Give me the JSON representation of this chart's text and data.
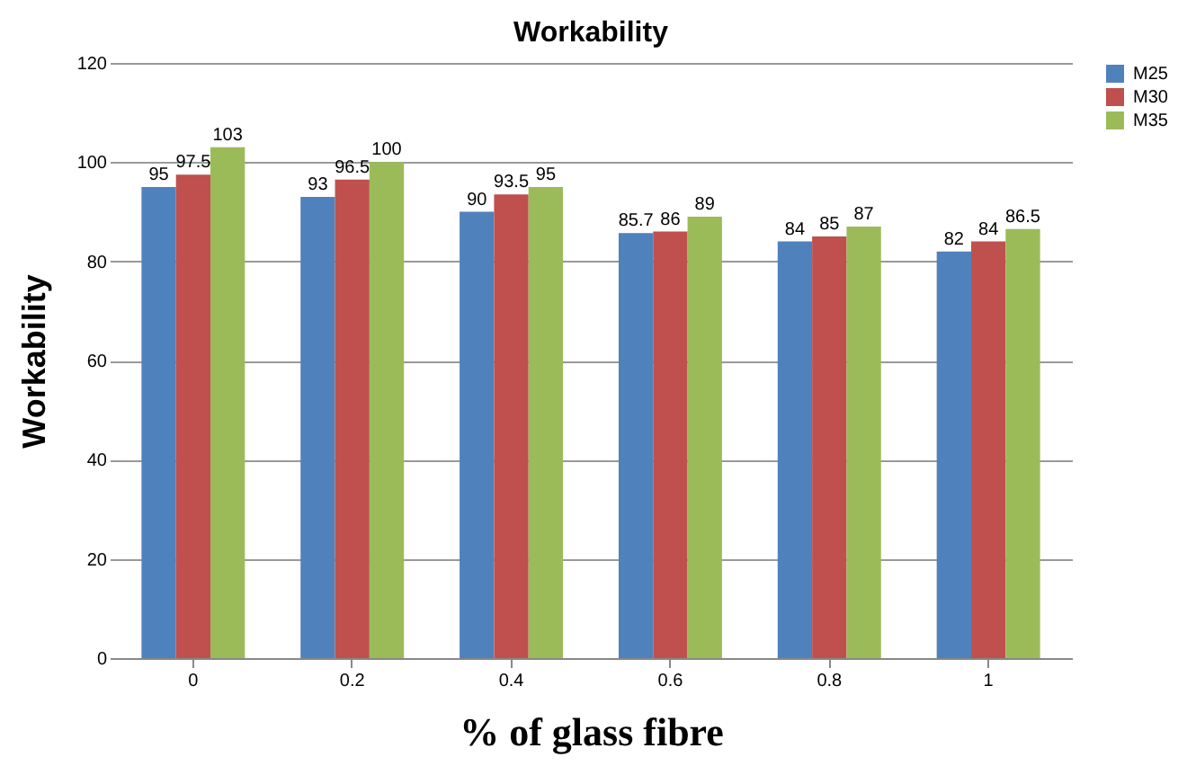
{
  "chart_data": {
    "type": "bar",
    "title": "Workability",
    "xlabel": "% of glass fibre",
    "ylabel": "Workability",
    "categories": [
      "0",
      "0.2",
      "0.4",
      "0.6",
      "0.8",
      "1"
    ],
    "series": [
      {
        "name": "M25",
        "color": "#4f81bd",
        "values": [
          95,
          93,
          90,
          85.7,
          84,
          82
        ]
      },
      {
        "name": "M30",
        "color": "#c0504d",
        "values": [
          97.5,
          96.5,
          93.5,
          86,
          85,
          84
        ]
      },
      {
        "name": "M35",
        "color": "#9bbb59",
        "values": [
          103,
          100,
          95,
          89,
          87,
          86.5
        ]
      }
    ],
    "ylim": [
      0,
      120
    ],
    "yticks": [
      0,
      20,
      40,
      60,
      80,
      100,
      120
    ],
    "grid": "y",
    "legend": "right",
    "data_labels": true
  }
}
